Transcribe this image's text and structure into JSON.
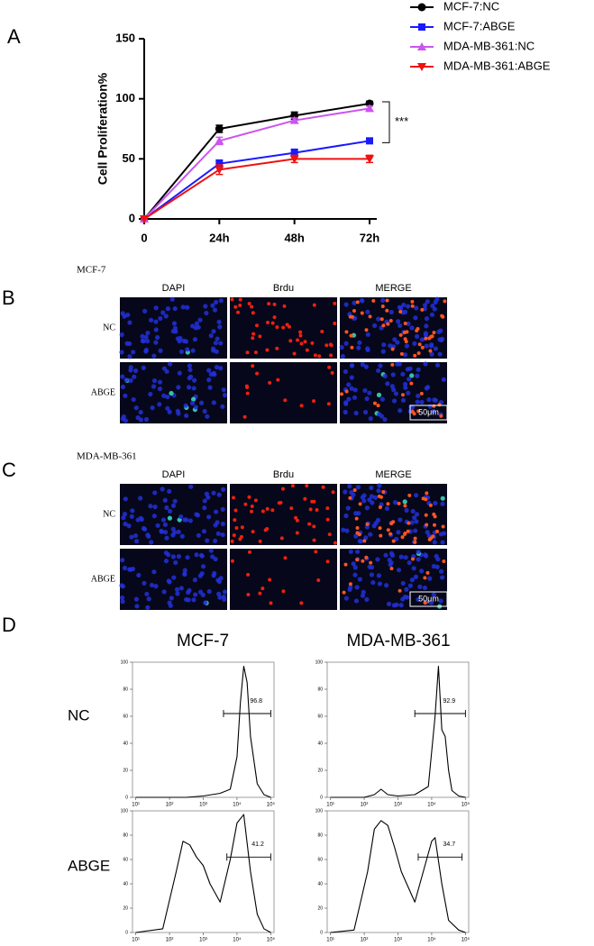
{
  "panel_letters": [
    "A",
    "B",
    "C",
    "D"
  ],
  "chart_data": [
    {
      "type": "line",
      "categories": [
        "0",
        "24h",
        "48h",
        "72h"
      ],
      "y_label": "Cell Proliferation%",
      "ylim": [
        0,
        150
      ],
      "yticks": [
        0,
        50,
        100,
        150
      ],
      "significance": "***",
      "series": [
        {
          "name": "MCF-7:NC",
          "color": "#000000",
          "marker": "circle",
          "values": [
            0,
            75,
            86,
            96
          ],
          "errors": [
            0,
            3,
            3,
            2
          ]
        },
        {
          "name": "MCF-7:ABGE",
          "color": "#1a1aff",
          "marker": "square",
          "values": [
            0,
            46,
            55,
            65
          ],
          "errors": [
            0,
            3,
            3,
            2
          ]
        },
        {
          "name": "MDA-MB-361:NC",
          "color": "#cc55ee",
          "marker": "triangle-up",
          "values": [
            0,
            65,
            82,
            92
          ],
          "errors": [
            0,
            3,
            2,
            2
          ]
        },
        {
          "name": "MDA-MB-361:ABGE",
          "color": "#ee1111",
          "marker": "triangle-down",
          "values": [
            0,
            41,
            50,
            50
          ],
          "errors": [
            0,
            4,
            3,
            3
          ]
        }
      ]
    },
    {
      "type": "line",
      "xscale": "log",
      "color": "#000000",
      "x": [
        10,
        316,
        1000,
        3162,
        6310,
        10000,
        12589,
        15849,
        19953,
        25119,
        39811,
        63096,
        100000
      ],
      "values": [
        0,
        0,
        1,
        3,
        6,
        30,
        70,
        97,
        85,
        45,
        10,
        2,
        0
      ],
      "xlim": [
        8,
        125000
      ],
      "xticks": [
        {
          "value": 10,
          "label": "10¹"
        },
        {
          "value": 100,
          "label": "10²"
        },
        {
          "value": 1000,
          "label": "10³"
        },
        {
          "value": 10000,
          "label": "10⁴"
        },
        {
          "value": 100000,
          "label": "10⁵"
        }
      ],
      "ylim": [
        0,
        100
      ],
      "yticks": [
        0,
        20,
        40,
        60,
        80,
        100
      ],
      "gate": {
        "value": 96.8,
        "range": [
          3981,
          100000
        ]
      }
    },
    {
      "type": "line",
      "xscale": "log",
      "color": "#000000",
      "x": [
        10,
        100,
        200,
        316,
        501,
        1000,
        3162,
        7943,
        12589,
        15849,
        19953,
        25119,
        31623,
        39811,
        63096,
        100000
      ],
      "values": [
        0,
        0,
        2,
        6,
        2,
        1,
        2,
        8,
        60,
        97,
        50,
        45,
        20,
        5,
        1,
        0
      ],
      "xlim": [
        8,
        125000
      ],
      "xticks": [
        {
          "value": 10,
          "label": "10¹"
        },
        {
          "value": 100,
          "label": "10²"
        },
        {
          "value": 1000,
          "label": "10³"
        },
        {
          "value": 10000,
          "label": "10⁴"
        },
        {
          "value": 100000,
          "label": "10⁵"
        }
      ],
      "ylim": [
        0,
        100
      ],
      "yticks": [
        0,
        20,
        40,
        60,
        80,
        100
      ],
      "gate": {
        "value": 92.9,
        "range": [
          3162,
          100000
        ]
      }
    },
    {
      "type": "line",
      "xscale": "log",
      "color": "#000000",
      "x": [
        10,
        63,
        158,
        251,
        398,
        631,
        1000,
        1585,
        3162,
        6310,
        10000,
        15849,
        25119,
        39811,
        63096,
        100000
      ],
      "values": [
        0,
        3,
        50,
        75,
        72,
        62,
        55,
        40,
        25,
        60,
        90,
        97,
        50,
        15,
        3,
        0
      ],
      "xlim": [
        8,
        125000
      ],
      "xticks": [
        {
          "value": 10,
          "label": "10¹"
        },
        {
          "value": 100,
          "label": "10²"
        },
        {
          "value": 1000,
          "label": "10³"
        },
        {
          "value": 10000,
          "label": "10⁴"
        },
        {
          "value": 100000,
          "label": "10⁵"
        }
      ],
      "ylim": [
        0,
        100
      ],
      "yticks": [
        0,
        20,
        40,
        60,
        80,
        100
      ],
      "gate": {
        "value": 41.2,
        "range": [
          5012,
          100000
        ]
      }
    },
    {
      "type": "line",
      "xscale": "log",
      "color": "#000000",
      "x": [
        10,
        50,
        126,
        200,
        316,
        501,
        794,
        1259,
        3162,
        6310,
        10000,
        12589,
        19953,
        31623,
        63096,
        100000
      ],
      "values": [
        0,
        2,
        50,
        85,
        92,
        88,
        70,
        50,
        25,
        55,
        75,
        78,
        40,
        10,
        2,
        0
      ],
      "xlim": [
        8,
        125000
      ],
      "xticks": [
        {
          "value": 10,
          "label": "10¹"
        },
        {
          "value": 100,
          "label": "10²"
        },
        {
          "value": 1000,
          "label": "10³"
        },
        {
          "value": 10000,
          "label": "10⁴"
        },
        {
          "value": 100000,
          "label": "10⁵"
        }
      ],
      "ylim": [
        0,
        100
      ],
      "yticks": [
        0,
        20,
        40,
        60,
        80,
        100
      ],
      "gate": {
        "value": 34.7,
        "range": [
          3981,
          79433
        ]
      }
    }
  ],
  "panel_b": {
    "title": "MCF-7",
    "columns": [
      "DAPI",
      "Brdu",
      "MERGE"
    ],
    "rows": [
      "NC",
      "ABGE"
    ],
    "scale_bar": "50μm"
  },
  "panel_c": {
    "title": "MDA-MB-361",
    "columns": [
      "DAPI",
      "Brdu",
      "MERGE"
    ],
    "rows": [
      "NC",
      "ABGE"
    ],
    "scale_bar": "50μm"
  },
  "panel_d": {
    "columns": [
      "MCF-7",
      "MDA-MB-361"
    ],
    "rows": [
      "NC",
      "ABGE"
    ]
  }
}
